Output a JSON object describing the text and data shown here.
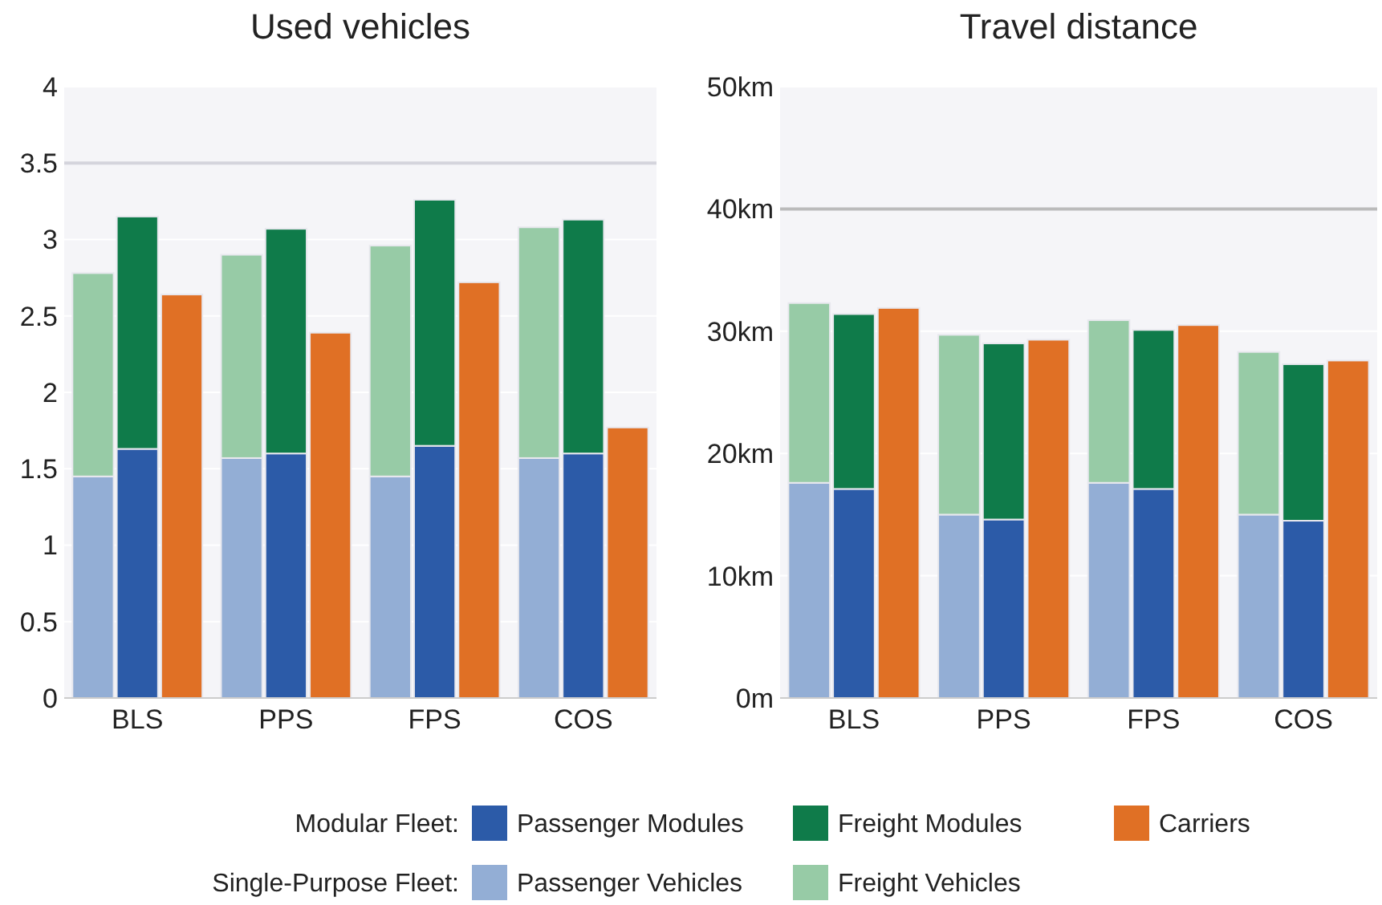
{
  "chart_data": [
    {
      "type": "bar",
      "title": "Used vehicles",
      "categories": [
        null,
        "BLS",
        null,
        null,
        "PPS",
        null,
        null,
        "FPS",
        null,
        null,
        "COS",
        null
      ],
      "stacked": true,
      "ylim": [
        0,
        4
      ],
      "yticks": [
        0,
        0.5,
        1,
        1.5,
        2,
        2.5,
        3,
        3.5,
        4
      ],
      "grid": "y",
      "legend": "bottom",
      "legend_title": [
        "Modular Fleet:",
        "Single-Purpose Fleet:"
      ],
      "ref_lines": [
        {
          "axis": "y",
          "value": 3.5,
          "color": "#d4d4dc"
        }
      ],
      "series": [
        {
          "name": "Passenger Vehicles",
          "color": "#93aed5",
          "values": [
            1.45,
            null,
            null,
            1.57,
            null,
            null,
            1.45,
            null,
            null,
            1.57,
            null,
            null
          ]
        },
        {
          "name": "Freight Vehicles",
          "color": "#97cba6",
          "values": [
            1.33,
            null,
            null,
            1.33,
            null,
            null,
            1.51,
            null,
            null,
            1.51,
            null,
            null
          ]
        },
        {
          "name": "Passenger Modules",
          "color": "#2c5ba8",
          "values": [
            null,
            1.63,
            null,
            null,
            1.6,
            null,
            null,
            1.65,
            null,
            null,
            1.6,
            null
          ]
        },
        {
          "name": "Freight Modules",
          "color": "#0f7b4a",
          "values": [
            null,
            1.52,
            null,
            null,
            1.47,
            null,
            null,
            1.61,
            null,
            null,
            1.53,
            null
          ]
        },
        {
          "name": "Carriers",
          "color": "#e07025",
          "values": [
            null,
            null,
            2.64,
            null,
            null,
            2.39,
            null,
            null,
            2.72,
            null,
            null,
            1.77
          ]
        }
      ]
    },
    {
      "type": "bar",
      "title": "Travel distance",
      "categories": [
        null,
        "BLS",
        null,
        null,
        "PPS",
        null,
        null,
        "FPS",
        null,
        null,
        "COS",
        null
      ],
      "stacked": true,
      "ylim": [
        0,
        50
      ],
      "yticks": [
        {
          "value": 0,
          "label": "0m"
        },
        {
          "value": 10,
          "label": "10km"
        },
        {
          "value": 20,
          "label": "20km"
        },
        {
          "value": 30,
          "label": "30km"
        },
        {
          "value": 40,
          "label": "40km"
        },
        {
          "value": 50,
          "label": "50km"
        }
      ],
      "grid": "y",
      "ref_lines": [
        {
          "axis": "y",
          "value": 40,
          "color": "#bbbbbb"
        }
      ],
      "series": [
        {
          "color": "#93aed5",
          "values": [
            17.6,
            null,
            null,
            15.0,
            null,
            null,
            17.6,
            null,
            null,
            15.0,
            null,
            null
          ]
        },
        {
          "color": "#97cba6",
          "values": [
            14.7,
            null,
            null,
            14.7,
            null,
            null,
            13.3,
            null,
            null,
            13.3,
            null,
            null
          ]
        },
        {
          "color": "#2c5ba8",
          "values": [
            null,
            17.1,
            null,
            null,
            14.6,
            null,
            null,
            17.1,
            null,
            null,
            14.5,
            null
          ]
        },
        {
          "color": "#0f7b4a",
          "values": [
            null,
            14.3,
            null,
            null,
            14.4,
            null,
            null,
            13.0,
            null,
            null,
            12.8,
            null
          ]
        },
        {
          "color": "#e07025",
          "values": [
            null,
            null,
            31.9,
            null,
            null,
            29.3,
            null,
            null,
            30.5,
            null,
            null,
            27.6
          ]
        }
      ]
    }
  ]
}
